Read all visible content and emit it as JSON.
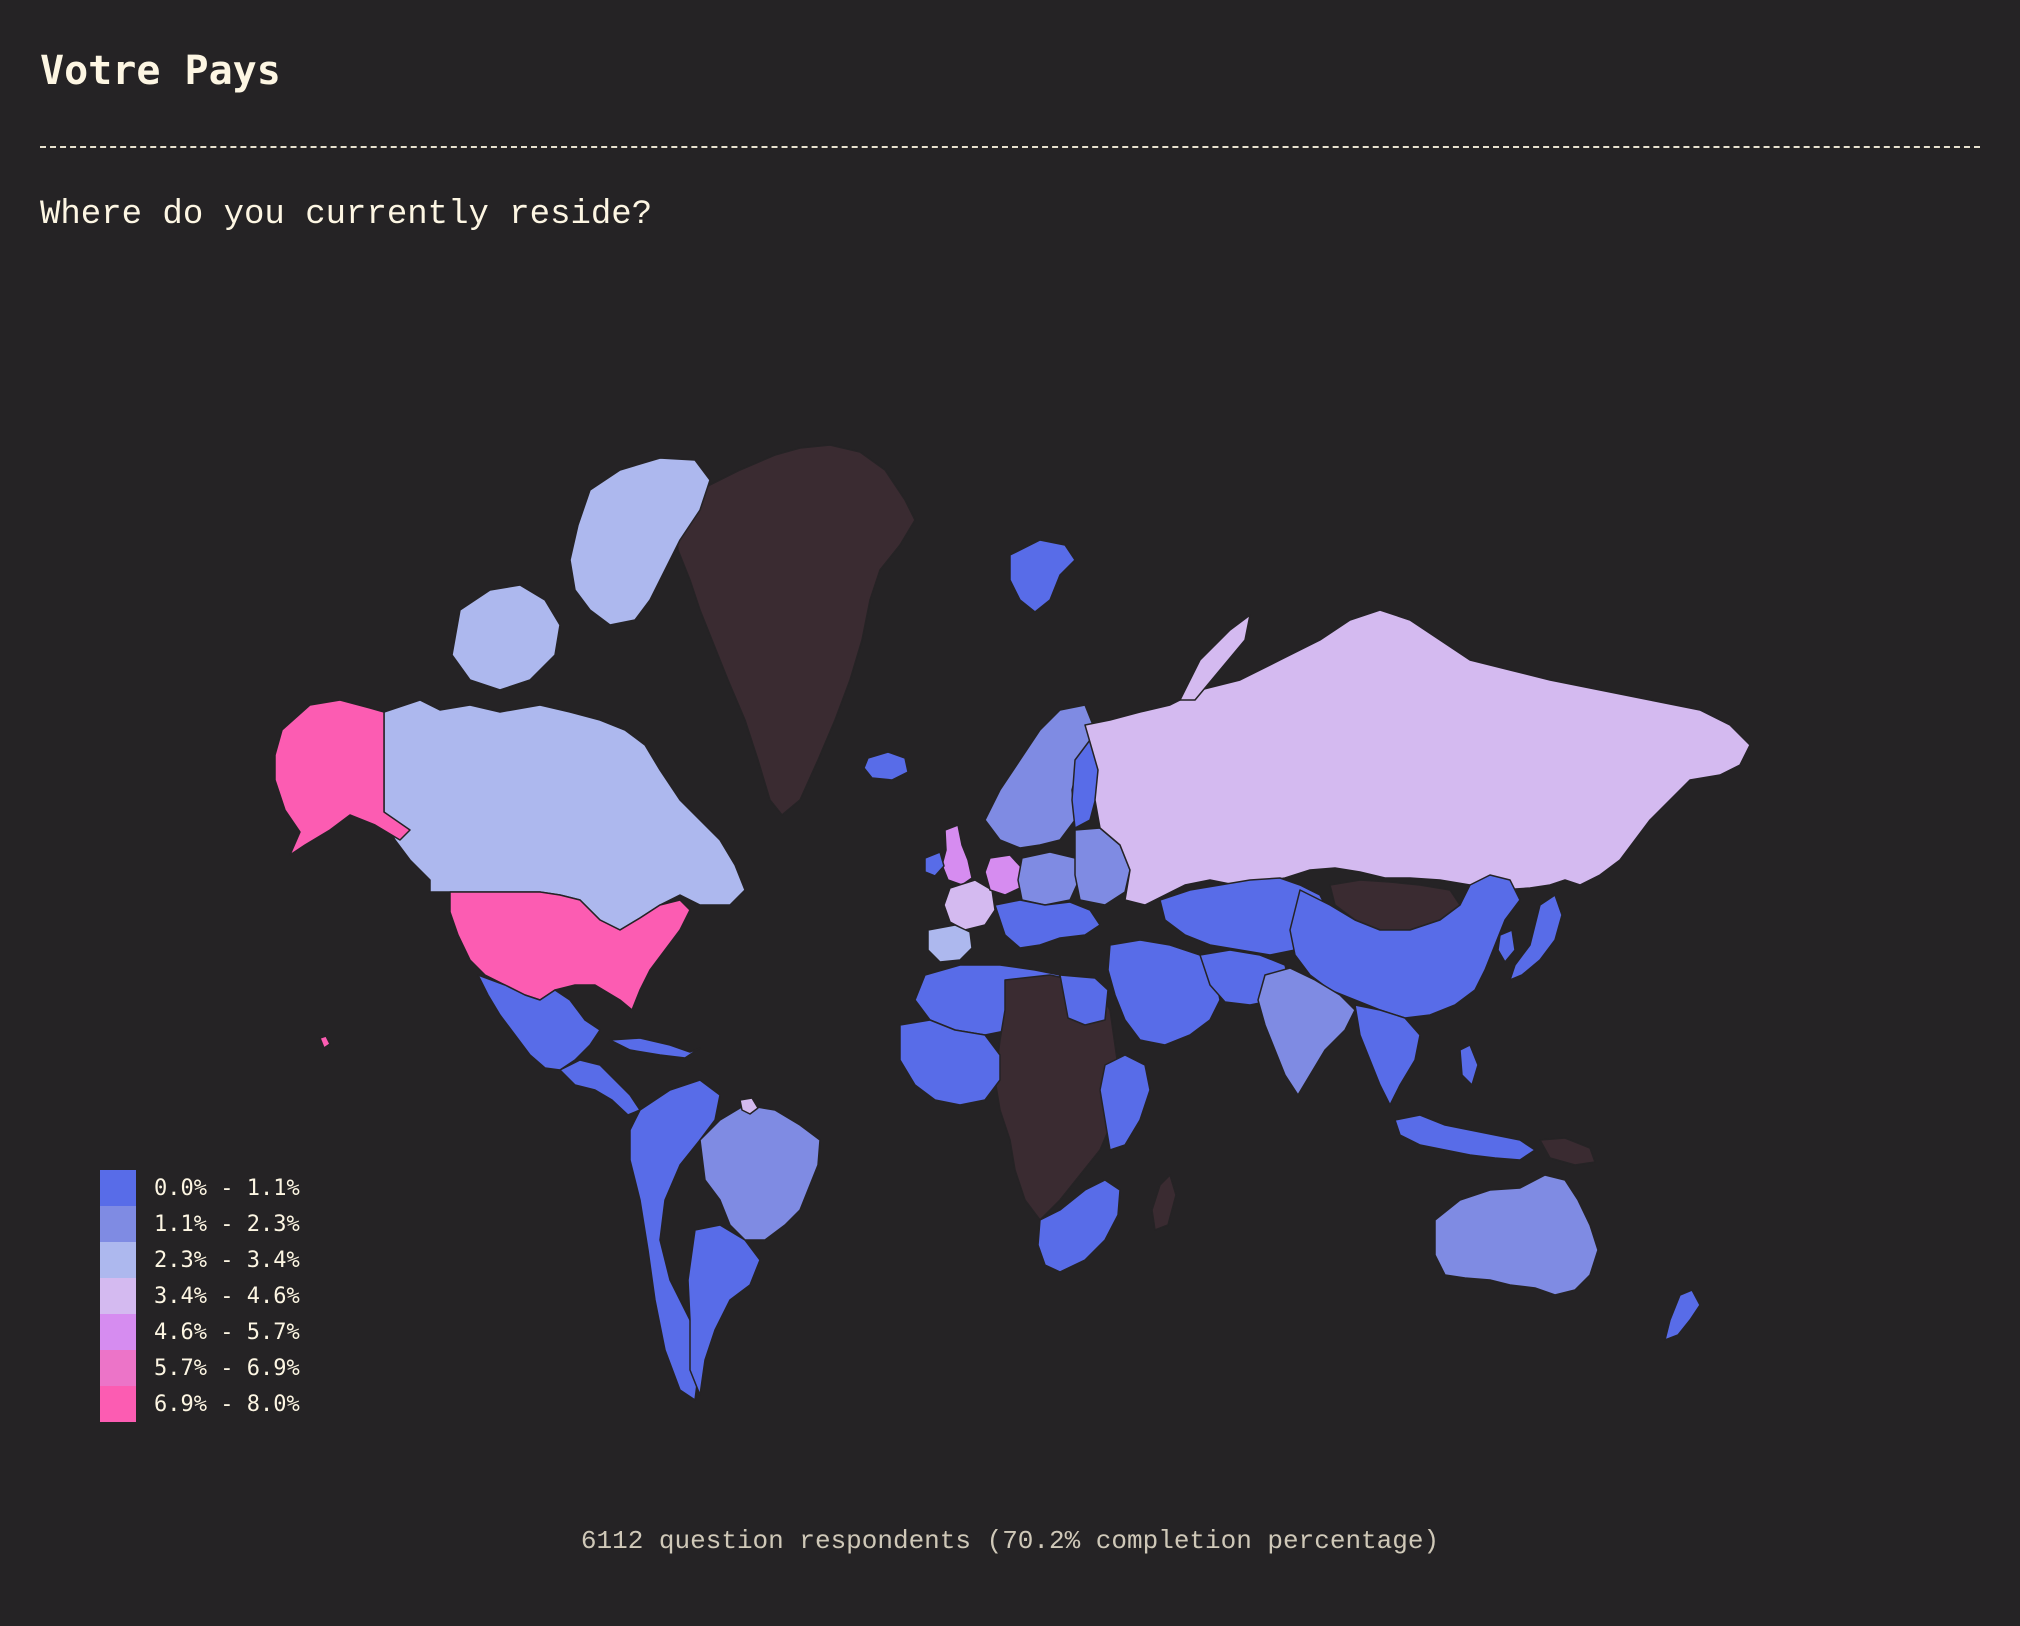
{
  "header": {
    "title": "Votre Pays",
    "question": "Where do you currently reside?"
  },
  "footer": {
    "summary": "6112 question respondents (70.2% completion percentage)"
  },
  "colors": {
    "background": "#252325",
    "no_data": "#3a2b31",
    "text": "#fdf6e3"
  },
  "legend": [
    {
      "label": "0.0% - 1.1%",
      "color": "#586ce8"
    },
    {
      "label": "1.1% - 2.3%",
      "color": "#7f8be3"
    },
    {
      "label": "2.3% - 3.4%",
      "color": "#adb8ee"
    },
    {
      "label": "3.4% - 4.6%",
      "color": "#d4baf0"
    },
    {
      "label": "4.6% - 5.7%",
      "color": "#d68cf0"
    },
    {
      "label": "5.7% - 6.9%",
      "color": "#ec74c8"
    },
    {
      "label": "6.9% - 8.0%",
      "color": "#fc5cb2"
    }
  ],
  "map_data": {
    "type": "choropleth",
    "bins": [
      "0.0% - 1.1%",
      "1.1% - 2.3%",
      "2.3% - 3.4%",
      "3.4% - 4.6%",
      "4.6% - 5.7%",
      "5.7% - 6.9%",
      "6.9% - 8.0%"
    ],
    "regions": [
      {
        "region": "United States",
        "bin": 6
      },
      {
        "region": "Alaska",
        "bin": 6
      },
      {
        "region": "Canada",
        "bin": 2
      },
      {
        "region": "Greenland",
        "bin": null
      },
      {
        "region": "Iceland",
        "bin": 0
      },
      {
        "region": "Svalbard",
        "bin": 0
      },
      {
        "region": "Mexico",
        "bin": 0
      },
      {
        "region": "Central America",
        "bin": 0
      },
      {
        "region": "Caribbean",
        "bin": 0
      },
      {
        "region": "Brazil",
        "bin": 1
      },
      {
        "region": "Andean South America",
        "bin": 0
      },
      {
        "region": "Southern Cone",
        "bin": 0
      },
      {
        "region": "Guianas",
        "bin": 3
      },
      {
        "region": "United Kingdom",
        "bin": 4
      },
      {
        "region": "Ireland",
        "bin": 0
      },
      {
        "region": "France",
        "bin": 3
      },
      {
        "region": "Iberia",
        "bin": 2
      },
      {
        "region": "Germany",
        "bin": 4
      },
      {
        "region": "Scandinavia",
        "bin": 1
      },
      {
        "region": "Finland",
        "bin": 0
      },
      {
        "region": "Central Europe",
        "bin": 1
      },
      {
        "region": "Southern Europe",
        "bin": 0
      },
      {
        "region": "Eastern Europe",
        "bin": 1
      },
      {
        "region": "Russia",
        "bin": 3
      },
      {
        "region": "Kazakhstan and Central Asia",
        "bin": 0
      },
      {
        "region": "Mongolia",
        "bin": null
      },
      {
        "region": "China",
        "bin": 0
      },
      {
        "region": "Japan",
        "bin": 0
      },
      {
        "region": "Korea",
        "bin": 0
      },
      {
        "region": "India",
        "bin": 1
      },
      {
        "region": "Middle East",
        "bin": 0
      },
      {
        "region": "Iran and Afghanistan",
        "bin": 0
      },
      {
        "region": "Southeast Asia",
        "bin": 0
      },
      {
        "region": "Indonesia and Philippines",
        "bin": 0
      },
      {
        "region": "Papua New Guinea",
        "bin": null
      },
      {
        "region": "Australia",
        "bin": 1
      },
      {
        "region": "New Zealand",
        "bin": 0
      },
      {
        "region": "North Africa",
        "bin": 0
      },
      {
        "region": "Sahel and Central Africa",
        "bin": null
      },
      {
        "region": "Egypt",
        "bin": 0
      },
      {
        "region": "West Africa",
        "bin": 0
      },
      {
        "region": "East Africa",
        "bin": 0
      },
      {
        "region": "Southern Africa",
        "bin": 0
      },
      {
        "region": "Madagascar",
        "bin": null
      },
      {
        "region": "Hawaii",
        "bin": 6
      }
    ]
  }
}
